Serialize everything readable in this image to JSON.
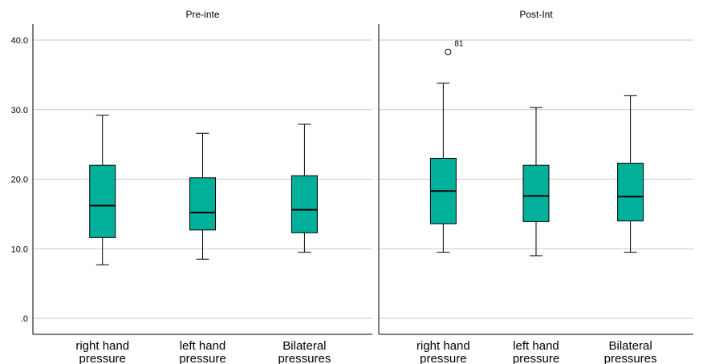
{
  "chart_data": {
    "type": "box",
    "ylim": [
      0,
      42
    ],
    "y_ticks": [
      ".0",
      "10.0",
      "20.0",
      "30.0",
      "40.0"
    ],
    "y_tick_values": [
      0,
      10,
      20,
      30,
      40
    ],
    "grid": true,
    "box_color": "#00b09b",
    "categories": [
      {
        "line1": "right hand",
        "line2": "pressure"
      },
      {
        "line1": "left hand",
        "line2": "pressure"
      },
      {
        "line1": "Bilateral",
        "line2": "pressures"
      }
    ],
    "panels": [
      {
        "title": "Pre-inte",
        "boxes": [
          {
            "min": 7.7,
            "q1": 11.6,
            "median": 16.2,
            "q3": 22.0,
            "max": 29.2,
            "outliers": []
          },
          {
            "min": 8.5,
            "q1": 12.7,
            "median": 15.2,
            "q3": 20.2,
            "max": 26.6,
            "outliers": []
          },
          {
            "min": 9.5,
            "q1": 12.3,
            "median": 15.6,
            "q3": 20.5,
            "max": 27.9,
            "outliers": []
          }
        ]
      },
      {
        "title": "Post-Int",
        "boxes": [
          {
            "min": 9.5,
            "q1": 13.6,
            "median": 18.3,
            "q3": 23.0,
            "max": 33.8,
            "outliers": [
              {
                "value": 38.3,
                "label": "81"
              }
            ]
          },
          {
            "min": 9.0,
            "q1": 13.9,
            "median": 17.6,
            "q3": 22.0,
            "max": 30.3,
            "outliers": []
          },
          {
            "min": 9.5,
            "q1": 14.0,
            "median": 17.5,
            "q3": 22.3,
            "max": 32.0,
            "outliers": []
          }
        ]
      }
    ]
  }
}
